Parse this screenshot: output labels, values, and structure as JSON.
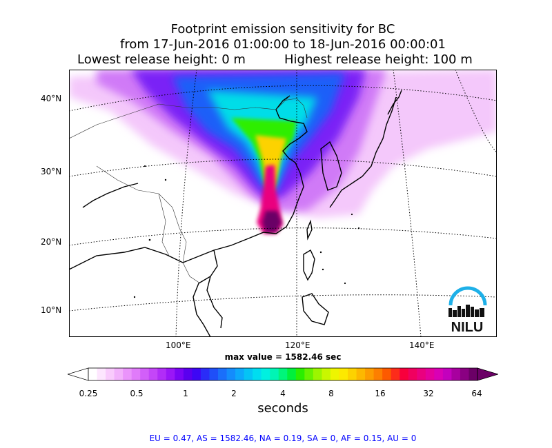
{
  "title": {
    "line1": "Footprint emission sensitivity for BC",
    "line2": "from 17-Jun-2016 01:00:00 to 18-Jun-2016 00:00:01",
    "lowest": "Lowest release height: 0 m",
    "highest": "Highest release height: 100 m"
  },
  "map": {
    "lat_labels": [
      "40°N",
      "30°N",
      "20°N",
      "10°N"
    ],
    "lon_labels": [
      "100°E",
      "120°E",
      "140°E"
    ],
    "logo_text": "NILU",
    "colors": {
      "logo_arc": "#1eb0e8",
      "logo_city": "#111111"
    }
  },
  "max_value": "max value = 1582.46 sec",
  "colorbar": {
    "tick_labels": [
      "0.25",
      "0.5",
      "1",
      "2",
      "4",
      "8",
      "16",
      "32",
      "64"
    ],
    "unit": "seconds",
    "colors": [
      "#ffffff",
      "#fde6fe",
      "#f9cbfc",
      "#f2b1fb",
      "#ea94fb",
      "#e07bfa",
      "#d25ff9",
      "#c446f8",
      "#b12df7",
      "#9a16f7",
      "#7a05f5",
      "#5a00ef",
      "#3d07f5",
      "#2a2cf8",
      "#1f4ff8",
      "#1a6ffa",
      "#148cfc",
      "#0da8fb",
      "#05c4f5",
      "#00ddf0",
      "#00f0e0",
      "#00f5b5",
      "#00f57a",
      "#00f03c",
      "#2aee00",
      "#66f200",
      "#9cf500",
      "#c9f700",
      "#eef500",
      "#fde900",
      "#fdd200",
      "#fdb800",
      "#fd9c00",
      "#fd7f00",
      "#fd5a00",
      "#fd2c1a",
      "#f8003c",
      "#f0005f",
      "#ea007f",
      "#e4009c",
      "#d900b5",
      "#c300bd",
      "#a8009f",
      "#8a0082",
      "#6b0066"
    ]
  },
  "stats": "EU = 0.47,  AS = 1582.46,  NA = 0.19,  SA = 0,  AF = 0.15,  AU = 0"
}
